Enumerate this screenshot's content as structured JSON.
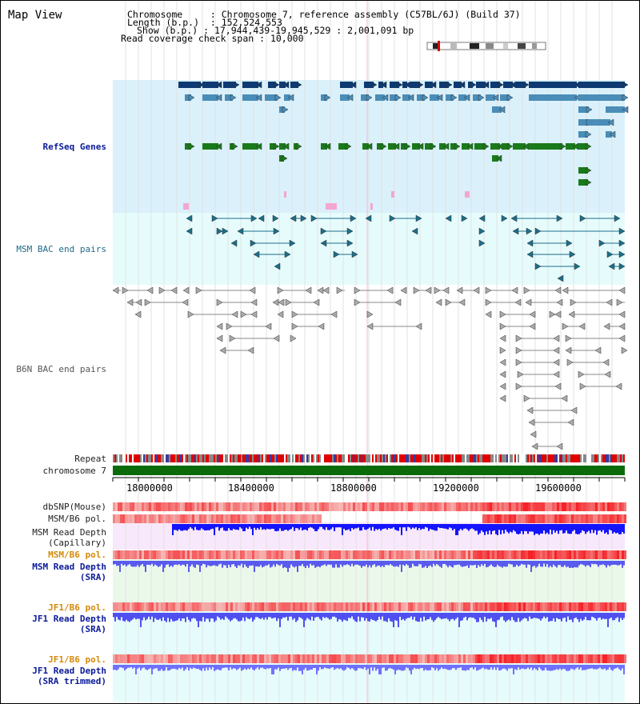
{
  "view": {
    "title": "Map View"
  },
  "info": {
    "chromosome_key": "Chromosome",
    "chromosome_value": "Chromosome 7, reference assembly (C57BL/6J) (Build 37)",
    "length_key": "Length (b.p.)",
    "length_value": "152,524,553",
    "show_key": "Show (b.p.)",
    "show_value": "17,944,439-19,945,529 : 2,001,091 bp",
    "coverage_key": "Read coverage check span",
    "coverage_value": "10,000"
  },
  "tracks": {
    "refseq": "RefSeq Genes",
    "msm_bac": "MSM BAC end pairs",
    "b6n_bac": "B6N BAC end pairs",
    "repeat": "Repeat",
    "chromosome": "chromosome 7",
    "dbsnp": "dbSNP(Mouse)",
    "msm_b6_pol_1": "MSM/B6 pol.",
    "msm_read_depth_cap_1": "MSM Read Depth",
    "msm_read_depth_cap_2": "(Capillary)",
    "msm_b6_pol_2": "MSM/B6 pol.",
    "msm_read_depth_sra_1": "MSM Read Depth",
    "msm_read_depth_sra_2": "(SRA)",
    "jf1_b6_pol_1": "JF1/B6 pol.",
    "jf1_read_depth_sra_1": "JF1 Read Depth",
    "jf1_read_depth_sra_2": "(SRA)",
    "jf1_b6_pol_2": "JF1/B6 pol.",
    "jf1_read_depth_trim_1": "JF1 Read Depth",
    "jf1_read_depth_trim_2": "(SRA trimmed)"
  },
  "axis": {
    "ticks": [
      "18000000",
      "18400000",
      "18800000",
      "19200000",
      "19600000"
    ]
  },
  "colors": {
    "refseq_bg": "#daf0fa",
    "msm_bac_bg": "#e6fcfc",
    "gene_navy": "#0d3a72",
    "gene_blue": "#4a8db8",
    "gene_green": "#1a7a1a",
    "gene_pink": "#f4a6d0",
    "bac_teal": "#1b6e8a",
    "bac_grey": "#777777",
    "repeat_red": "#e00000",
    "chromosome_green": "#0b6b0b",
    "depth_blue": "#1414ff",
    "pol_red": "#e01010",
    "msm_cap_bg": "#f8e8fb",
    "msm_sra_bg": "#eaf8ea",
    "jf1_bg": "#e6fcfc",
    "label_navy": "#0b1a99",
    "label_orange": "#d48a0a"
  }
}
